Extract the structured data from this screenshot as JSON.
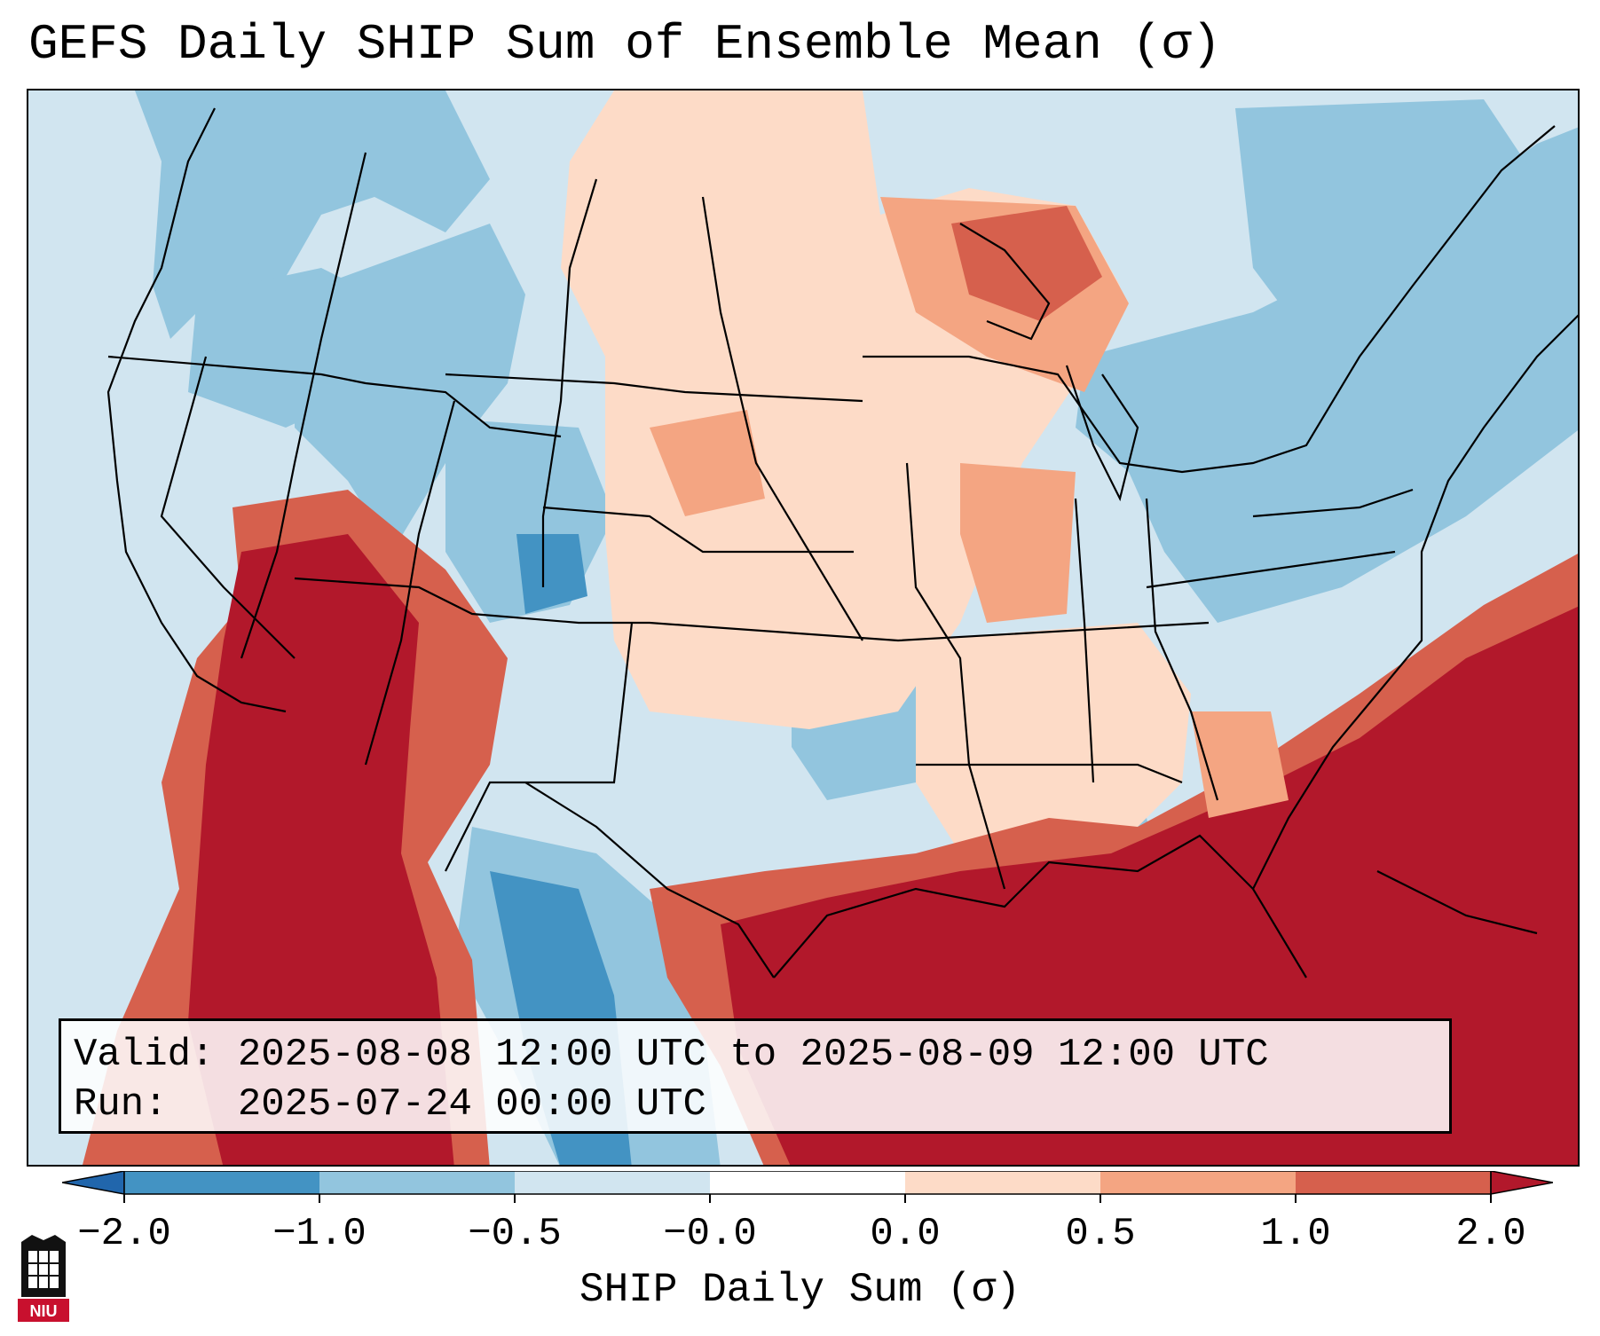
{
  "title": "GEFS Daily SHIP Sum of Ensemble Mean (σ)",
  "info": {
    "valid_label": "Valid:",
    "valid_value": "2025-08-08 12:00 UTC to 2025-08-09 12:00 UTC",
    "run_label": "Run:",
    "run_value": "2025-07-24 00:00 UTC"
  },
  "colorbar": {
    "label": "SHIP Daily Sum (σ)",
    "ticks": [
      "−2.0",
      "−1.0",
      "−0.5",
      "−0.0",
      "0.0",
      "0.5",
      "1.0",
      "2.0"
    ],
    "colors": [
      "#2166ac",
      "#4393c3",
      "#92c5de",
      "#d1e5f0",
      "#ffffff",
      "#fddbc7",
      "#f4a582",
      "#d6604d",
      "#b2182b"
    ]
  },
  "logo": {
    "text": "NIU",
    "icon": "university-tower-icon",
    "color": "#c8102e"
  },
  "map": {
    "region": "Contiguous United States",
    "background_color": "#d1e5f0",
    "anomaly_colors": {
      "strong_positive": "#b2182b",
      "positive": "#d6604d",
      "moderate_positive": "#f4a582",
      "weak_positive": "#fddbc7",
      "weak_negative": "#d1e5f0",
      "moderate_negative": "#92c5de",
      "strong_negative": "#4393c3"
    }
  }
}
